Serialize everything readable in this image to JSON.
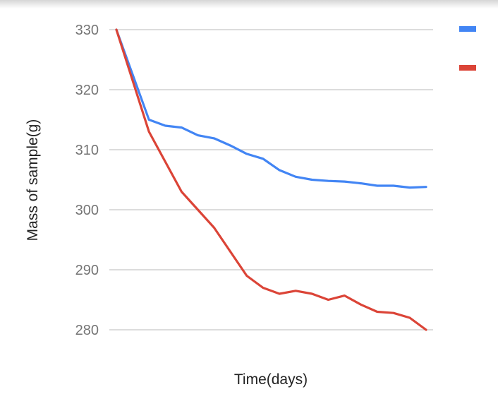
{
  "chart_data": {
    "type": "line",
    "title": "",
    "xlabel": "Time(days)",
    "ylabel": "Mass of sample(g)",
    "ylim": [
      280,
      330
    ],
    "yticks": [
      330,
      320,
      310,
      300,
      290,
      280
    ],
    "grid": true,
    "legend": "right",
    "x": [
      0,
      1,
      2,
      3,
      4,
      5,
      6,
      7,
      8,
      9,
      10,
      11,
      12,
      13,
      14,
      15,
      16,
      17,
      18,
      19
    ],
    "series": [
      {
        "color": "#4285f4",
        "values": [
          330,
          322.5,
          315,
          314,
          313.7,
          312.4,
          311.9,
          310.7,
          309.3,
          308.5,
          306.6,
          305.5,
          305,
          304.8,
          304.7,
          304.4,
          304,
          304,
          303.7,
          303.8
        ]
      },
      {
        "color": "#db4437",
        "values": [
          330,
          321.5,
          313,
          308,
          303,
          300,
          297,
          293,
          289,
          287,
          286,
          286.5,
          286,
          285,
          285.7,
          284.2,
          283,
          282.8,
          282,
          280
        ]
      }
    ]
  }
}
